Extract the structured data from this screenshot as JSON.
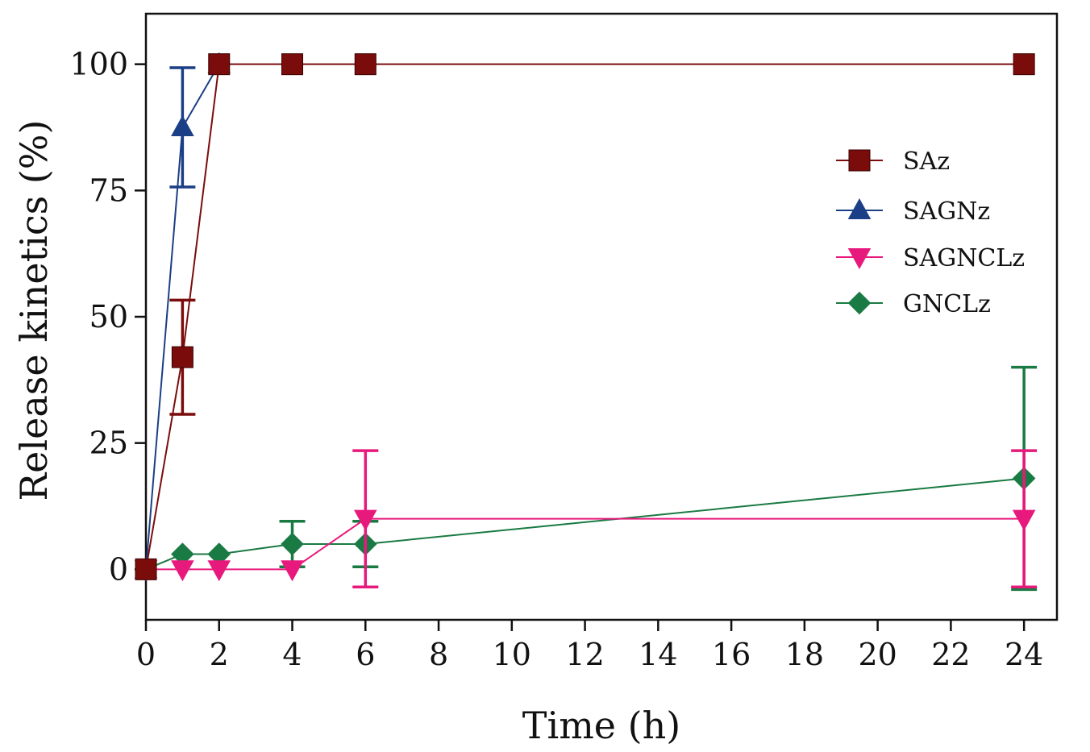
{
  "chart_data": {
    "type": "line",
    "title": "",
    "xlabel": "Time (h)",
    "ylabel": "Release kinetics (%)",
    "xlim": [
      0,
      24.9
    ],
    "ylim": [
      -10,
      110
    ],
    "xticks": [
      0,
      2,
      4,
      6,
      8,
      10,
      12,
      14,
      16,
      18,
      20,
      22,
      24
    ],
    "xtick_labels": [
      "0",
      "2",
      "4",
      "6",
      "8",
      "10",
      "12",
      "14",
      "16",
      "18",
      "20",
      "22",
      "24"
    ],
    "yticks": [
      0,
      25,
      50,
      75,
      100
    ],
    "ytick_labels": [
      "0",
      "25",
      "50",
      "75",
      "100"
    ],
    "grid": false,
    "legend_position": "top-right",
    "series": [
      {
        "name": "SAz",
        "marker": "square",
        "color": "#7b0c0c",
        "x": [
          0,
          1,
          2,
          4,
          6,
          24
        ],
        "y": [
          0,
          42,
          100,
          100,
          100,
          100
        ],
        "err": [
          0,
          11.3,
          0,
          0,
          0,
          0
        ]
      },
      {
        "name": "SAGNz",
        "marker": "triangle-up",
        "color": "#1b3f86",
        "x": [
          0,
          1,
          2
        ],
        "y": [
          0,
          87.5,
          100
        ],
        "err": [
          0,
          11.8,
          0
        ]
      },
      {
        "name": "SAGNCLz",
        "marker": "triangle-down",
        "color": "#e8197c",
        "x": [
          0,
          1,
          2,
          4,
          6,
          24
        ],
        "y": [
          0,
          0,
          0,
          0,
          10,
          10
        ],
        "err": [
          0,
          0,
          0,
          0,
          13.5,
          13.5
        ]
      },
      {
        "name": "GNCLz",
        "marker": "diamond",
        "color": "#1a7a43",
        "x": [
          0,
          1,
          2,
          4,
          6,
          24
        ],
        "y": [
          0,
          3,
          3,
          5,
          5,
          18
        ],
        "err": [
          0,
          0,
          0,
          4.5,
          4.5,
          22
        ]
      }
    ]
  }
}
